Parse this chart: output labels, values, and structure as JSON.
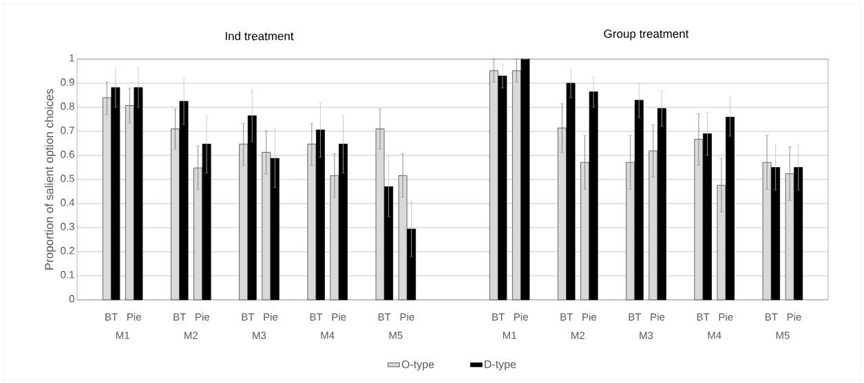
{
  "chart_data": {
    "type": "bar",
    "ylabel": "Proportion of salient option choices",
    "categories": [
      null,
      "BT",
      "Pie",
      null,
      "BT",
      "Pie",
      null,
      "BT",
      "Pie",
      null,
      "BT",
      "Pie",
      null,
      "BT",
      "Pie",
      null,
      null,
      null,
      "BT",
      "Pie",
      null,
      "BT",
      "Pie",
      null,
      "BT",
      "Pie",
      null,
      "BT",
      "Pie",
      null,
      "BT",
      "Pie",
      null
    ],
    "annotations": [
      "Ind treatment",
      "Group treatment",
      "M1",
      "M2",
      "M3",
      "M4",
      "M5",
      "M1",
      "M2",
      "M3",
      "M4",
      "M5"
    ],
    "series": [
      {
        "name": "O-type",
        "color": "#d9d9d9",
        "values": [
          null,
          0.84,
          0.807,
          null,
          0.71,
          0.548,
          null,
          0.647,
          0.613,
          null,
          0.647,
          0.516,
          null,
          0.71,
          0.516,
          null,
          null,
          null,
          0.952,
          0.952,
          null,
          0.714,
          0.571,
          null,
          0.571,
          0.619,
          null,
          0.667,
          0.476,
          null,
          0.571,
          0.524,
          null
        ],
        "errors": [
          null,
          [
            0.77,
            0.905
          ],
          [
            0.735,
            0.88
          ],
          null,
          [
            0.627,
            0.793
          ],
          [
            0.458,
            0.64
          ],
          null,
          [
            0.558,
            0.733
          ],
          [
            0.523,
            0.702
          ],
          null,
          [
            0.558,
            0.733
          ],
          [
            0.426,
            0.607
          ],
          null,
          [
            0.627,
            0.793
          ],
          [
            0.426,
            0.607
          ],
          null,
          null,
          null,
          [
            0.905,
            1.0
          ],
          [
            0.905,
            1.0
          ],
          null,
          [
            0.612,
            0.815
          ],
          [
            0.46,
            0.683
          ],
          null,
          [
            0.46,
            0.683
          ],
          [
            0.51,
            0.728
          ],
          null,
          [
            0.56,
            0.773
          ],
          [
            0.365,
            0.588
          ],
          null,
          [
            0.46,
            0.683
          ],
          [
            0.413,
            0.635
          ],
          null
        ]
      },
      {
        "name": "D-type",
        "color": "#000000",
        "values": [
          null,
          0.882,
          0.882,
          null,
          0.825,
          0.647,
          null,
          0.765,
          0.588,
          null,
          0.706,
          0.647,
          null,
          0.47,
          0.294,
          null,
          null,
          null,
          0.93,
          1.0,
          null,
          0.9,
          0.864,
          null,
          0.829,
          0.795,
          null,
          0.69,
          0.759,
          null,
          0.55,
          0.55,
          null
        ],
        "errors": [
          null,
          [
            0.8,
            0.963
          ],
          [
            0.8,
            0.963
          ],
          null,
          [
            0.728,
            0.92
          ],
          [
            0.527,
            0.765
          ],
          null,
          [
            0.658,
            0.872
          ],
          [
            0.466,
            0.712
          ],
          null,
          [
            0.592,
            0.82
          ],
          [
            0.527,
            0.765
          ],
          null,
          [
            0.345,
            0.597
          ],
          [
            0.18,
            0.408
          ],
          null,
          null,
          null,
          [
            0.88,
            0.98
          ],
          [
            1.0,
            1.0
          ],
          null,
          [
            0.84,
            0.955
          ],
          [
            0.8,
            0.928
          ],
          null,
          [
            0.757,
            0.9
          ],
          [
            0.72,
            0.87
          ],
          null,
          [
            0.6,
            0.778
          ],
          [
            0.68,
            0.84
          ],
          null,
          [
            0.457,
            0.645
          ],
          [
            0.457,
            0.645
          ],
          null
        ]
      }
    ],
    "ylim": [
      0,
      1
    ],
    "yticks": [
      0,
      0.1,
      0.2,
      0.3,
      0.4,
      0.5,
      0.6,
      0.7,
      0.8,
      0.9,
      1
    ],
    "grid": "y",
    "legend": "bottom"
  }
}
